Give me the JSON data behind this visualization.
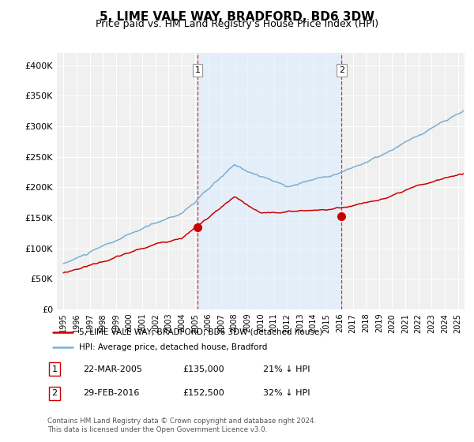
{
  "title": "5, LIME VALE WAY, BRADFORD, BD6 3DW",
  "subtitle": "Price paid vs. HM Land Registry's House Price Index (HPI)",
  "title_fontsize": 11,
  "subtitle_fontsize": 9,
  "ylabel_ticks": [
    "£0",
    "£50K",
    "£100K",
    "£150K",
    "£200K",
    "£250K",
    "£300K",
    "£350K",
    "£400K"
  ],
  "ytick_values": [
    0,
    50000,
    100000,
    150000,
    200000,
    250000,
    300000,
    350000,
    400000
  ],
  "ylim": [
    0,
    420000
  ],
  "xlim_start": 1994.5,
  "xlim_end": 2025.5,
  "hpi_color": "#7bafd4",
  "price_color": "#cc0000",
  "background_color": "#f0f0f0",
  "grid_color": "#ffffff",
  "shade_color": "#ddeeff",
  "marker1_x": 2005.2,
  "marker1_y": 135000,
  "marker2_x": 2016.15,
  "marker2_y": 152500,
  "legend_line1": "5, LIME VALE WAY, BRADFORD, BD6 3DW (detached house)",
  "legend_line2": "HPI: Average price, detached house, Bradford",
  "info1_num": "1",
  "info1_date": "22-MAR-2005",
  "info1_price": "£135,000",
  "info1_hpi": "21% ↓ HPI",
  "info2_num": "2",
  "info2_date": "29-FEB-2016",
  "info2_price": "£152,500",
  "info2_hpi": "32% ↓ HPI",
  "footnote": "Contains HM Land Registry data © Crown copyright and database right 2024.\nThis data is licensed under the Open Government Licence v3.0."
}
